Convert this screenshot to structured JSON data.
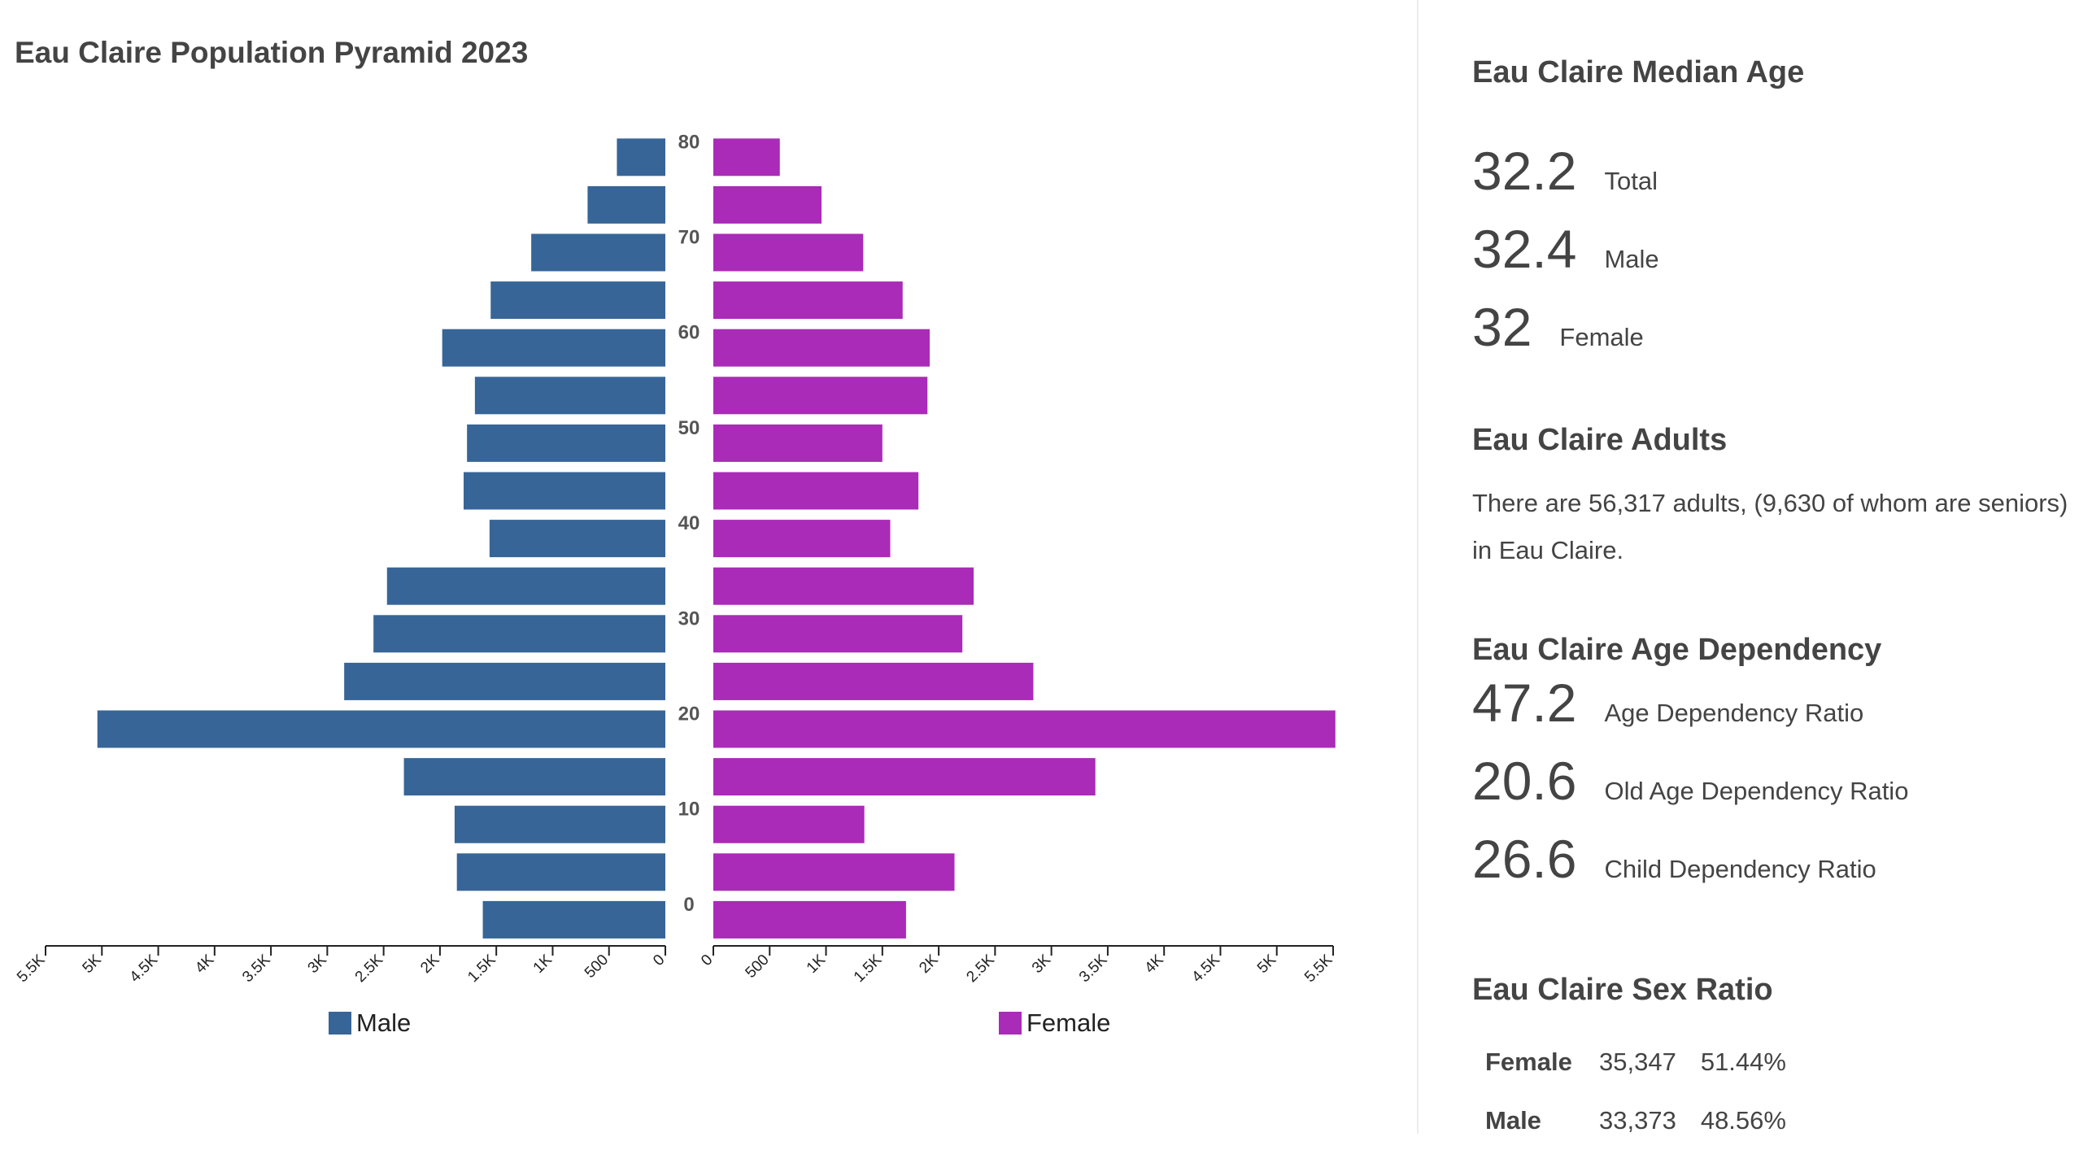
{
  "chart_data": {
    "type": "bar",
    "title": "Eau Claire Population Pyramid 2023",
    "orientation": "horizontal-pyramid",
    "age_groups": [
      "0-4",
      "5-9",
      "10-14",
      "15-19",
      "20-24",
      "25-29",
      "30-34",
      "35-39",
      "40-44",
      "45-49",
      "50-54",
      "55-59",
      "60-64",
      "65-69",
      "70-74",
      "75-79",
      "80+"
    ],
    "age_tick_labels": [
      "0",
      "10",
      "20",
      "30",
      "40",
      "50",
      "60",
      "70",
      "80"
    ],
    "series": [
      {
        "name": "Male",
        "color": "#376597",
        "values": [
          1620,
          1850,
          1870,
          2320,
          5040,
          2850,
          2590,
          2470,
          1560,
          1790,
          1760,
          1690,
          1980,
          1550,
          1190,
          690,
          430
        ]
      },
      {
        "name": "Female",
        "color": "#a92bb7",
        "values": [
          1710,
          2140,
          1340,
          3390,
          5520,
          2840,
          2210,
          2310,
          1570,
          1820,
          1500,
          1900,
          1920,
          1680,
          1330,
          960,
          590
        ]
      }
    ],
    "xlim": [
      0,
      5500
    ],
    "male_axis_ticks": [
      "5.5K",
      "5K",
      "4.5K",
      "4K",
      "3.5K",
      "3K",
      "2.5K",
      "2K",
      "1.5K",
      "1K",
      "500",
      "0"
    ],
    "female_axis_ticks": [
      "0",
      "500",
      "1K",
      "1.5K",
      "2K",
      "2.5K",
      "3K",
      "3.5K",
      "4K",
      "4.5K",
      "5K",
      "5.5K"
    ],
    "legend": [
      "Male",
      "Female"
    ],
    "legend_position": "bottom",
    "grid": false
  },
  "median_age": {
    "heading": "Eau Claire Median Age",
    "rows": [
      {
        "value": "32.2",
        "label": "Total"
      },
      {
        "value": "32.4",
        "label": "Male"
      },
      {
        "value": "32",
        "label": "Female"
      }
    ]
  },
  "adults": {
    "heading": "Eau Claire Adults",
    "text": "There are 56,317 adults, (9,630 of whom are seniors) in Eau Claire."
  },
  "dependency": {
    "heading": "Eau Claire Age Dependency",
    "rows": [
      {
        "value": "47.2",
        "label": "Age Dependency Ratio"
      },
      {
        "value": "20.6",
        "label": "Old Age Dependency Ratio"
      },
      {
        "value": "26.6",
        "label": "Child Dependency Ratio"
      }
    ]
  },
  "sex_ratio": {
    "heading": "Eau Claire Sex Ratio",
    "rows": [
      {
        "sex": "Female",
        "count": "35,347",
        "percent": "51.44%"
      },
      {
        "sex": "Male",
        "count": "33,373",
        "percent": "48.56%"
      }
    ]
  }
}
